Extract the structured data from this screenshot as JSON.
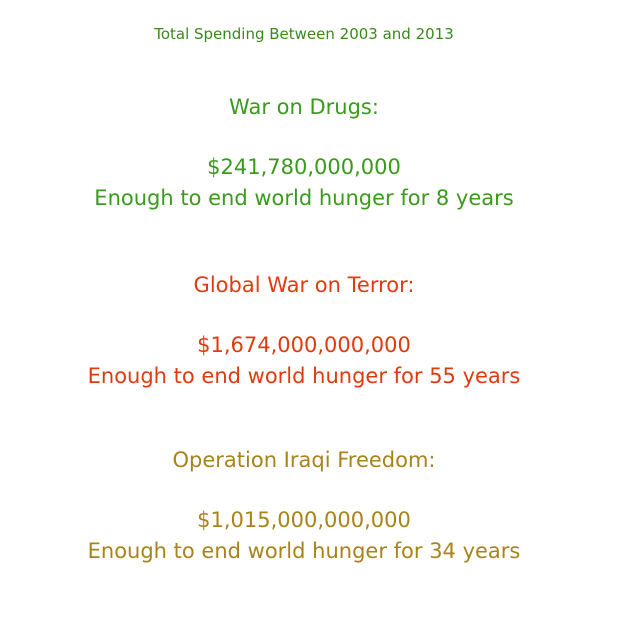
{
  "title": "Total Spending Between 2003 and 2013",
  "sections": [
    {
      "heading": "War on Drugs:",
      "amount": "$241,780,000,000",
      "note": "Enough to end world hunger for 8 years",
      "color": "#3a9a1c"
    },
    {
      "heading": "Global War on Terror:",
      "amount": "$1,674,000,000,000",
      "note": "Enough to end world hunger for 55 years",
      "color": "#e03a0e"
    },
    {
      "heading": "Operation Iraqi Freedom:",
      "amount": "$1,015,000,000,000",
      "note": "Enough to end world hunger for 34 years",
      "color": "#a8831a"
    }
  ]
}
